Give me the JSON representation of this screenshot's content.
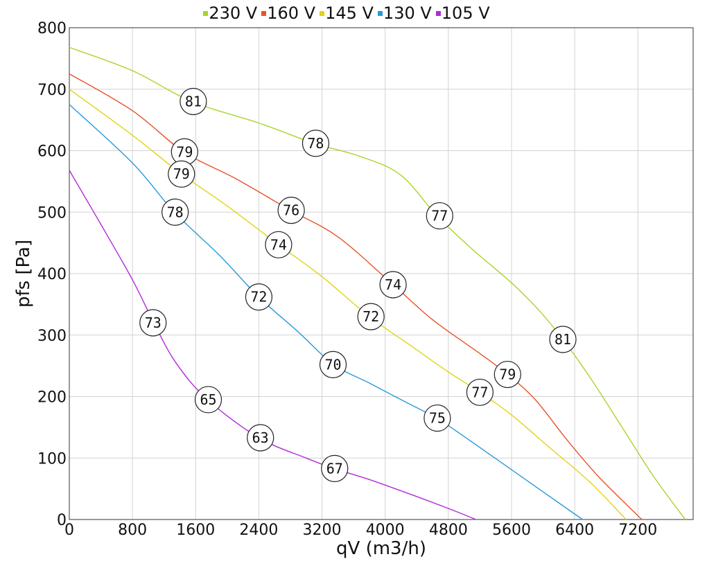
{
  "chart_data": {
    "type": "line",
    "xlabel": "qV (m3/h)",
    "ylabel": "pfs [Pa]",
    "xlim": [
      0,
      7900
    ],
    "ylim": [
      0,
      800
    ],
    "x_ticks": [
      0,
      800,
      1600,
      2400,
      3200,
      4000,
      4800,
      5600,
      6400,
      7200
    ],
    "y_ticks": [
      0,
      100,
      200,
      300,
      400,
      500,
      600,
      700,
      800
    ],
    "grid": true,
    "legend_position": "top-center",
    "series": [
      {
        "name": "230 V",
        "color": "#a8d42a",
        "points": [
          [
            0,
            768
          ],
          [
            800,
            730
          ],
          [
            1550,
            680
          ],
          [
            2400,
            645
          ],
          [
            3100,
            612
          ],
          [
            3700,
            590
          ],
          [
            4200,
            560
          ],
          [
            4650,
            495
          ],
          [
            5100,
            440
          ],
          [
            5600,
            385
          ],
          [
            5950,
            340
          ],
          [
            6250,
            293
          ],
          [
            6600,
            230
          ],
          [
            7000,
            150
          ],
          [
            7400,
            70
          ],
          [
            7800,
            0
          ]
        ]
      },
      {
        "name": "160 V",
        "color": "#e8522a",
        "points": [
          [
            0,
            725
          ],
          [
            800,
            665
          ],
          [
            1450,
            598
          ],
          [
            2100,
            555
          ],
          [
            2800,
            503
          ],
          [
            3400,
            460
          ],
          [
            4100,
            382
          ],
          [
            4600,
            325
          ],
          [
            5200,
            270
          ],
          [
            5550,
            236
          ],
          [
            5900,
            195
          ],
          [
            6300,
            130
          ],
          [
            6700,
            70
          ],
          [
            7250,
            0
          ]
        ]
      },
      {
        "name": "145 V",
        "color": "#e0d414",
        "points": [
          [
            0,
            700
          ],
          [
            800,
            625
          ],
          [
            1420,
            562
          ],
          [
            2000,
            510
          ],
          [
            2650,
            447
          ],
          [
            3200,
            395
          ],
          [
            3800,
            330
          ],
          [
            4300,
            285
          ],
          [
            4800,
            240
          ],
          [
            5200,
            207
          ],
          [
            5600,
            170
          ],
          [
            6100,
            115
          ],
          [
            6600,
            60
          ],
          [
            7050,
            0
          ]
        ]
      },
      {
        "name": "130 V",
        "color": "#2a9ad8",
        "points": [
          [
            0,
            675
          ],
          [
            800,
            580
          ],
          [
            1330,
            500
          ],
          [
            1900,
            430
          ],
          [
            2400,
            362
          ],
          [
            2900,
            305
          ],
          [
            3350,
            252
          ],
          [
            3800,
            222
          ],
          [
            4200,
            195
          ],
          [
            4650,
            165
          ],
          [
            5000,
            135
          ],
          [
            5500,
            90
          ],
          [
            6000,
            45
          ],
          [
            6500,
            0
          ]
        ]
      },
      {
        "name": "105 V",
        "color": "#b22ad8",
        "points": [
          [
            0,
            568
          ],
          [
            400,
            480
          ],
          [
            800,
            390
          ],
          [
            1070,
            320
          ],
          [
            1350,
            255
          ],
          [
            1750,
            195
          ],
          [
            2400,
            133
          ],
          [
            3000,
            100
          ],
          [
            3350,
            83
          ],
          [
            3800,
            65
          ],
          [
            4300,
            42
          ],
          [
            4800,
            18
          ],
          [
            5150,
            0
          ]
        ]
      }
    ],
    "annotations": [
      {
        "series": "230 V",
        "x": 1570,
        "y": 680,
        "label": "81"
      },
      {
        "series": "230 V",
        "x": 3120,
        "y": 612,
        "label": "78"
      },
      {
        "series": "230 V",
        "x": 4690,
        "y": 494,
        "label": "77"
      },
      {
        "series": "230 V",
        "x": 6250,
        "y": 293,
        "label": "81"
      },
      {
        "series": "160 V",
        "x": 1460,
        "y": 598,
        "label": "79"
      },
      {
        "series": "160 V",
        "x": 2810,
        "y": 503,
        "label": "76"
      },
      {
        "series": "160 V",
        "x": 4100,
        "y": 382,
        "label": "74"
      },
      {
        "series": "160 V",
        "x": 5550,
        "y": 236,
        "label": "79"
      },
      {
        "series": "145 V",
        "x": 1420,
        "y": 562,
        "label": "79"
      },
      {
        "series": "145 V",
        "x": 2650,
        "y": 447,
        "label": "74"
      },
      {
        "series": "145 V",
        "x": 3820,
        "y": 330,
        "label": "72"
      },
      {
        "series": "145 V",
        "x": 5200,
        "y": 207,
        "label": "77"
      },
      {
        "series": "130 V",
        "x": 1340,
        "y": 500,
        "label": "78"
      },
      {
        "series": "130 V",
        "x": 2400,
        "y": 362,
        "label": "72"
      },
      {
        "series": "130 V",
        "x": 3340,
        "y": 252,
        "label": "70"
      },
      {
        "series": "130 V",
        "x": 4660,
        "y": 165,
        "label": "75"
      },
      {
        "series": "105 V",
        "x": 1060,
        "y": 320,
        "label": "73"
      },
      {
        "series": "105 V",
        "x": 1760,
        "y": 195,
        "label": "65"
      },
      {
        "series": "105 V",
        "x": 2420,
        "y": 133,
        "label": "63"
      },
      {
        "series": "105 V",
        "x": 3360,
        "y": 83,
        "label": "67"
      }
    ]
  }
}
